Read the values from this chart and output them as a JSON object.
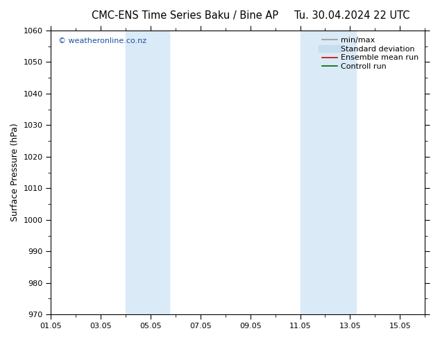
{
  "title_left": "CMC-ENS Time Series Baku / Bine AP",
  "title_right": "Tu. 30.04.2024 22 UTC",
  "ylabel": "Surface Pressure (hPa)",
  "ylim": [
    970,
    1060
  ],
  "yticks": [
    970,
    980,
    990,
    1000,
    1010,
    1020,
    1030,
    1040,
    1050,
    1060
  ],
  "xtick_labels": [
    "01.05",
    "03.05",
    "05.05",
    "07.05",
    "09.05",
    "11.05",
    "13.05",
    "15.05"
  ],
  "xtick_positions": [
    0,
    2,
    4,
    6,
    8,
    10,
    12,
    14
  ],
  "xlim": [
    0,
    15
  ],
  "shaded_regions": [
    {
      "x_start": 3.0,
      "x_end": 4.75,
      "color": "#daeaf7"
    },
    {
      "x_start": 10.0,
      "x_end": 12.25,
      "color": "#daeaf7"
    }
  ],
  "watermark_text": "© weatheronline.co.nz",
  "watermark_color": "#1a52a0",
  "legend_entries": [
    {
      "label": "min/max",
      "color": "#999999",
      "lw": 1.2
    },
    {
      "label": "Standard deviation",
      "color": "#c8ddef",
      "lw": 7
    },
    {
      "label": "Ensemble mean run",
      "color": "#cc0000",
      "lw": 1.2
    },
    {
      "label": "Controll run",
      "color": "#006600",
      "lw": 1.2
    }
  ],
  "bg_color": "#ffffff",
  "title_fontsize": 10.5,
  "label_fontsize": 9,
  "tick_fontsize": 8,
  "legend_fontsize": 8
}
